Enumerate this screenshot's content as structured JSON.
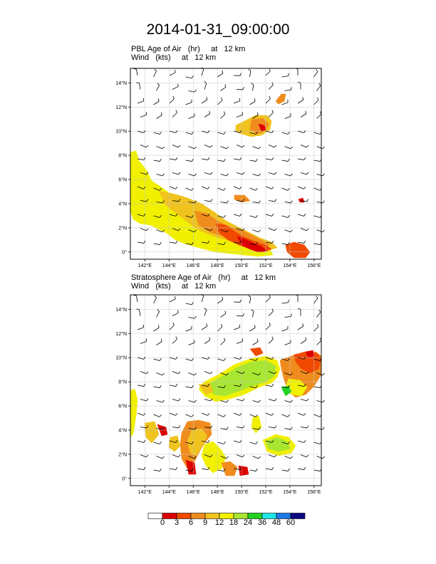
{
  "main_title": "2014-01-31_09:00:00",
  "panels": [
    {
      "id": "pbl",
      "title_line1": "PBL Age of Air   (hr)     at   12 km",
      "title_line2": "Wind   (kts)     at   12 km"
    },
    {
      "id": "strat",
      "title_line1": "Stratosphere Age of Air   (hr)     at   12 km",
      "title_line2": "Wind   (kts)     at   12 km"
    }
  ],
  "axes": {
    "lon_ticks": [
      "142°E",
      "144°E",
      "146°E",
      "148°E",
      "150°E",
      "152°E",
      "154°E",
      "156°E"
    ],
    "lat_ticks": [
      "0°",
      "2°N",
      "4°N",
      "6°N",
      "8°N",
      "10°N",
      "12°N",
      "14°N"
    ],
    "lon_values": [
      142,
      144,
      146,
      148,
      150,
      152,
      154,
      156
    ],
    "lat_values": [
      0,
      2,
      4,
      6,
      8,
      10,
      12,
      14
    ],
    "lon_range": [
      140.8,
      156.6
    ],
    "lat_range": [
      -0.6,
      15.2
    ]
  },
  "colorbar": {
    "levels": [
      "0",
      "3",
      "6",
      "9",
      "12",
      "18",
      "24",
      "36",
      "48",
      "60"
    ],
    "colors": [
      "#ffffff",
      "#dd0000",
      "#f04a00",
      "#f08c1e",
      "#f0c31e",
      "#f0f000",
      "#a8e632",
      "#23d223",
      "#1ee6e6",
      "#1e78e6",
      "#0a0a82"
    ]
  },
  "chart_data": {
    "type": "map",
    "subtype": "filled-contour with wind barbs",
    "title": "2014-01-31_09:00:00",
    "x_axis": "longitude (°E)",
    "y_axis": "latitude (°N)",
    "xlim": [
      140.8,
      156.6
    ],
    "ylim": [
      -0.6,
      15.2
    ],
    "panels": [
      "PBL Age of Air (hr) at 12 km",
      "Stratosphere Age of Air (hr) at 12 km"
    ],
    "wind": "barbs, predominantly easterly to east-north-easterly at 12 km",
    "color_levels_hr": [
      0,
      3,
      6,
      9,
      12,
      18,
      24,
      36,
      48,
      60
    ]
  }
}
